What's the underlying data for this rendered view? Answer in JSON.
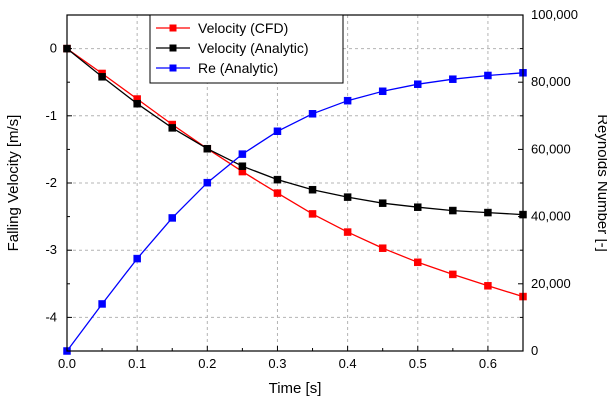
{
  "chart_data": {
    "type": "line",
    "title": "",
    "xlabel": "Time [s]",
    "ylabel": "Falling Velocity [m/s]",
    "y2label": "Reynolds Number [-]",
    "xlim": [
      0,
      0.65
    ],
    "ylim": [
      -4.5,
      0.5
    ],
    "y2lim": [
      0,
      100000
    ],
    "grid": true,
    "legend_position": "top-center",
    "x_ticks": [
      "0.0",
      "0.1",
      "0.2",
      "0.3",
      "0.4",
      "0.5",
      "0.6"
    ],
    "y_ticks": [
      "0",
      "-1",
      "-2",
      "-3",
      "-4"
    ],
    "y2_ticks": [
      "0",
      "20,000",
      "40,000",
      "60,000",
      "80,000",
      "100,000"
    ],
    "x": [
      0,
      0.05,
      0.1,
      0.15,
      0.2,
      0.25,
      0.3,
      0.35,
      0.4,
      0.45,
      0.5,
      0.55,
      0.6,
      0.65
    ],
    "series": [
      {
        "name": "Velocity (CFD)",
        "axis": "left",
        "color": "#ff0000",
        "values": [
          0,
          -0.37,
          -0.75,
          -1.13,
          -1.49,
          -1.83,
          -2.15,
          -2.46,
          -2.73,
          -2.97,
          -3.18,
          -3.36,
          -3.53,
          -3.69
        ]
      },
      {
        "name": "Velocity (Analytic)",
        "axis": "left",
        "color": "#000000",
        "values": [
          0,
          -0.42,
          -0.82,
          -1.18,
          -1.49,
          -1.75,
          -1.95,
          -2.1,
          -2.21,
          -2.3,
          -2.36,
          -2.41,
          -2.44,
          -2.47
        ]
      },
      {
        "name": "Re (Analytic)",
        "axis": "right",
        "color": "#0000ff",
        "values": [
          0,
          14000,
          27500,
          39600,
          50100,
          58600,
          65400,
          70600,
          74500,
          77300,
          79400,
          80900,
          82000,
          82800
        ]
      }
    ]
  }
}
